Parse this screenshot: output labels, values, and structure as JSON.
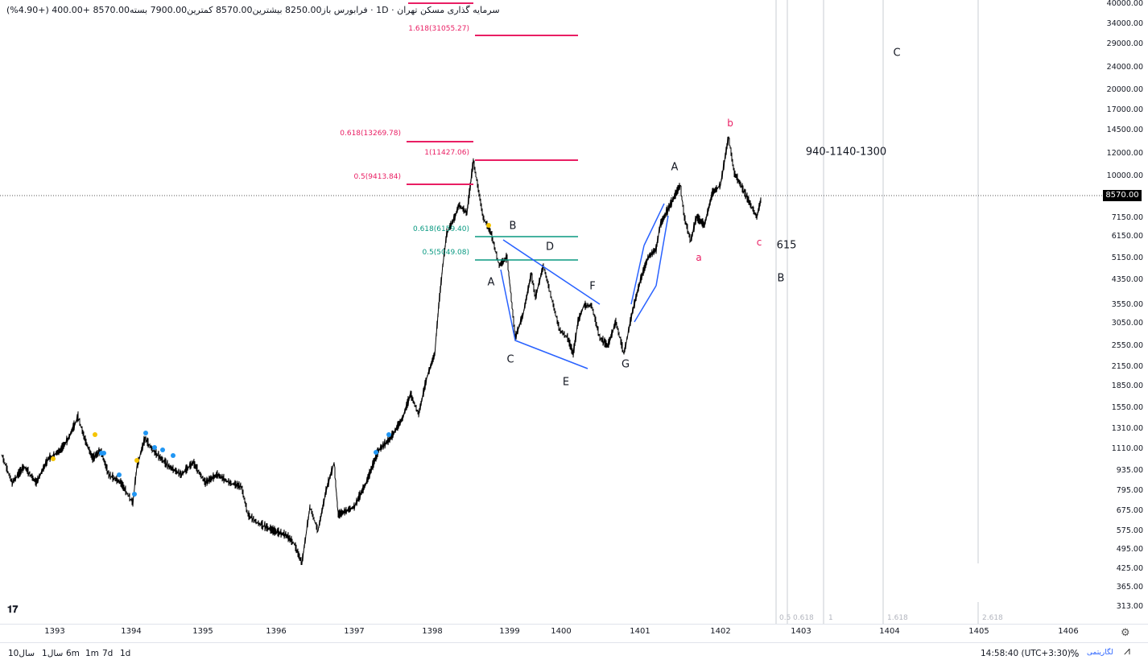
{
  "header": {
    "symbol_title": "سرمایه گذاری مسکن تهران",
    "interval": "1D",
    "exchange": "فرابورس",
    "open_label": "باز",
    "open": "8250.00",
    "high_label": "بیشترین",
    "high": "8570.00",
    "low_label": "کمترین",
    "low": "7900.00",
    "close_label": "بسته",
    "close": "8570.00",
    "change": "+400.00",
    "change_pct": "(+4.90%)"
  },
  "price_axis": {
    "scale": "log",
    "ticks": [
      "40000.00",
      "34000.00",
      "29000.00",
      "24000.00",
      "20000.00",
      "17000.00",
      "14500.00",
      "12000.00",
      "10000.00",
      "7150.00",
      "6150.00",
      "5150.00",
      "4350.00",
      "3550.00",
      "3050.00",
      "2550.00",
      "2150.00",
      "1850.00",
      "1550.00",
      "1310.00",
      "1110.00",
      "935.00",
      "795.00",
      "675.00",
      "575.00",
      "495.00",
      "425.00",
      "365.00",
      "313.00"
    ],
    "last_price": "8570.00"
  },
  "time_axis": {
    "ticks": [
      "1393",
      "1394",
      "1395",
      "1396",
      "1397",
      "1398",
      "1399",
      "1400",
      "1401",
      "1402",
      "1403",
      "1404",
      "1405",
      "1406"
    ]
  },
  "fib_labels": {
    "ext_1618": "1.618(31055.27)",
    "ret_0618_high": "0.618(13269.78)",
    "level_1": "1(11427.06)",
    "ret_05_high": "0.5(9413.84)",
    "ret_0618_low": "0.618(6159.40)",
    "ret_05_low": "0.5(5049.08)"
  },
  "fib_time_labels": [
    "0.5",
    "0.618",
    "1",
    "1.618",
    "2.618"
  ],
  "wave_labels": {
    "a1": "A",
    "b1": "B",
    "c1": "C",
    "d1": "D",
    "e1": "E",
    "f1": "F",
    "g1": "G",
    "a2": "A",
    "b_small": "b",
    "a_small": "a",
    "c_small": "c",
    "n615": "615",
    "b2": "B",
    "c2": "C",
    "targets": "940-1140-1300"
  },
  "bottom": {
    "ranges": [
      "10سال",
      "1سال",
      "6m",
      "1m",
      "7d",
      "1d"
    ],
    "clock": "14:58:40 (UTC+3:30)",
    "percent": "%",
    "log": "لگاریتمی"
  },
  "colors": {
    "fib_pink": "#e91e63",
    "fib_green": "#089981",
    "trend_blue": "#2962ff",
    "dot_yellow": "#f5c400",
    "dot_blue": "#2196f3"
  },
  "logo": "TV"
}
